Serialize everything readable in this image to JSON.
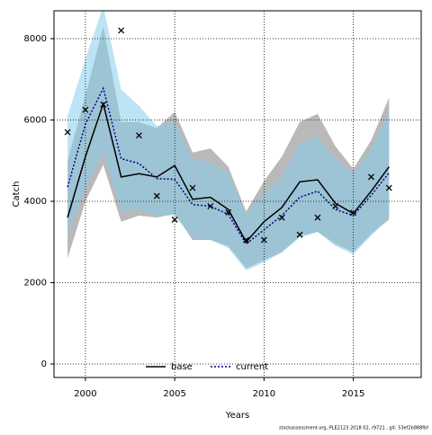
{
  "chart_data": {
    "type": "band-line",
    "x_label": "Years",
    "y_label": "Catch",
    "footnote": "stockassessment.org, PLE2123 2018 02, r9721 , git: 53ef2b988fbf",
    "x": [
      1999,
      2000,
      2001,
      2002,
      2003,
      2004,
      2005,
      2006,
      2007,
      2008,
      2009,
      2010,
      2011,
      2012,
      2013,
      2014,
      2015,
      2016,
      2017
    ],
    "xlim": [
      1998.24,
      2018.8
    ],
    "xticks": [
      2000,
      2005,
      2010,
      2015
    ],
    "ylim": [
      -331,
      8685
    ],
    "yticks": [
      0,
      2000,
      4000,
      6000,
      8000
    ],
    "grid": true,
    "legend": "bottom",
    "series": [
      {
        "name": "base",
        "color": "#000000",
        "band_color": "#808080",
        "values": [
          3600,
          5100,
          6400,
          4600,
          4680,
          4600,
          4880,
          4050,
          4100,
          3800,
          3000,
          3500,
          3850,
          4480,
          4530,
          3950,
          3700,
          4250,
          4850
        ],
        "upper": [
          5000,
          6600,
          8300,
          5950,
          5950,
          5800,
          6200,
          5200,
          5300,
          4850,
          3750,
          4500,
          5100,
          5950,
          6150,
          5350,
          4800,
          5500,
          6550
        ],
        "lower": [
          2600,
          4000,
          4900,
          3500,
          3650,
          3600,
          3700,
          3050,
          3050,
          2900,
          2350,
          2550,
          2750,
          3150,
          3250,
          2950,
          2750,
          3200,
          3550
        ]
      },
      {
        "name": "current",
        "color": "#00008b",
        "band_color": "#87ceeb",
        "values": [
          4350,
          5900,
          6780,
          5050,
          4930,
          4560,
          4540,
          3920,
          3880,
          3680,
          2950,
          3300,
          3650,
          4100,
          4250,
          3800,
          3650,
          4150,
          4700
        ],
        "upper": [
          6100,
          7500,
          8800,
          6750,
          6350,
          5850,
          5950,
          5050,
          4950,
          4700,
          3700,
          4200,
          4600,
          5450,
          5600,
          5050,
          4700,
          5300,
          6200
        ],
        "lower": [
          3200,
          4300,
          5200,
          3750,
          3800,
          3650,
          3650,
          3100,
          3050,
          2850,
          2300,
          2500,
          2750,
          3100,
          3250,
          2900,
          2700,
          3150,
          3600
        ]
      }
    ],
    "observed": {
      "color": "#000000",
      "values": [
        5700,
        6250,
        6380,
        8200,
        5620,
        4130,
        3550,
        4330,
        3880,
        3730,
        3050,
        3050,
        3600,
        3180,
        3600,
        3880,
        3720,
        4600,
        4330
      ]
    }
  }
}
